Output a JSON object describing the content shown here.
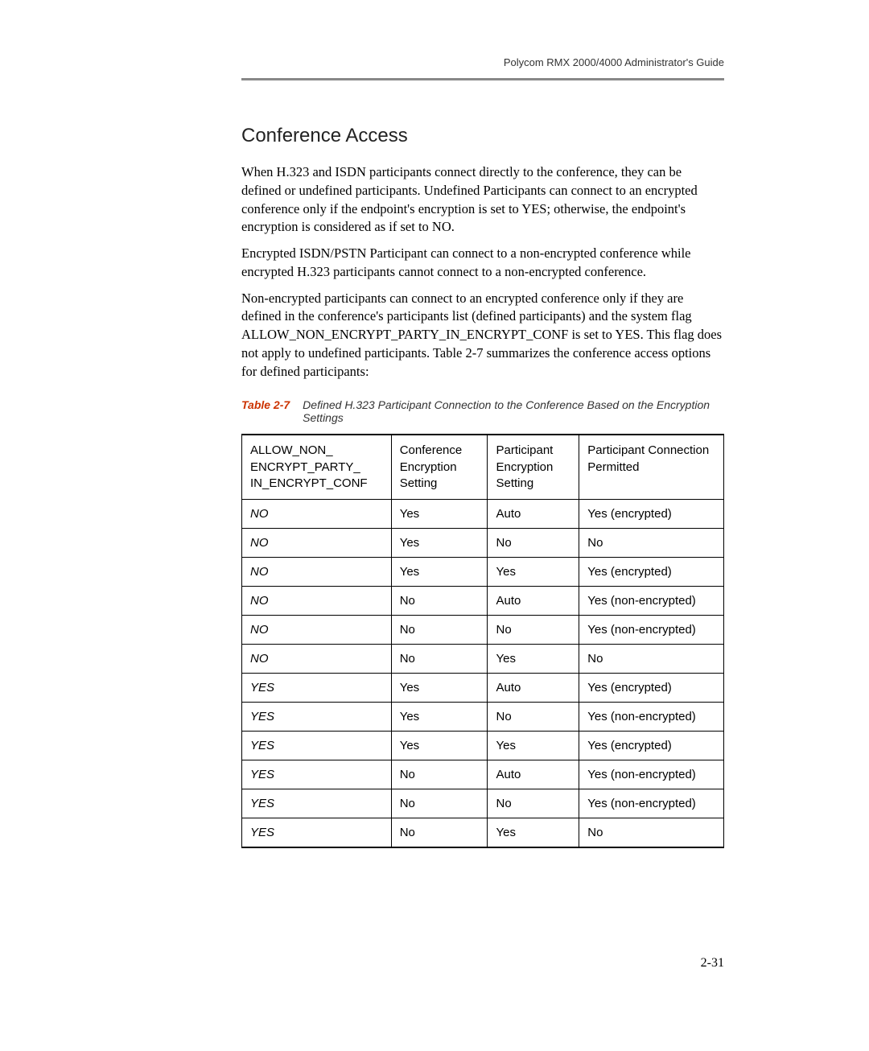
{
  "header": {
    "guide": "Polycom RMX 2000/4000 Administrator's Guide"
  },
  "section": {
    "title": "Conference Access",
    "para1": "When H.323 and ISDN participants connect directly to the conference, they can be defined or undefined participants. Undefined Participants can connect to an encrypted conference only if the endpoint's encryption is set to YES; otherwise, the endpoint's encryption is considered as if set to NO.",
    "para2": "Encrypted ISDN/PSTN Participant can connect to a non-encrypted conference while encrypted H.323 participants cannot connect to a non-encrypted conference.",
    "para3": "Non-encrypted participants can connect to an encrypted conference only if they are defined in the conference's participants list (defined participants) and the system flag ALLOW_NON_ENCRYPT_PARTY_IN_ENCRYPT_CONF is set to YES. This flag does not apply to undefined participants.  Table 2-7 summarizes the conference access options for defined participants:"
  },
  "table": {
    "caption_label": "Table 2-7",
    "caption_text": "Defined H.323 Participant Connection to the Conference Based on the Encryption Settings",
    "headers": {
      "h1": "ALLOW_NON_\nENCRYPT_PARTY_\nIN_ENCRYPT_CONF",
      "h2": "Conference Encryption Setting",
      "h3": "Participant Encryption Setting",
      "h4": "Participant Connection Permitted"
    },
    "rows": [
      {
        "c1": "NO",
        "c2": "Yes",
        "c3": "Auto",
        "c4": "Yes (encrypted)"
      },
      {
        "c1": "NO",
        "c2": "Yes",
        "c3": "No",
        "c4": "No"
      },
      {
        "c1": "NO",
        "c2": "Yes",
        "c3": "Yes",
        "c4": "Yes (encrypted)"
      },
      {
        "c1": "NO",
        "c2": "No",
        "c3": "Auto",
        "c4": "Yes (non-encrypted)"
      },
      {
        "c1": "NO",
        "c2": "No",
        "c3": "No",
        "c4": "Yes (non-encrypted)"
      },
      {
        "c1": "NO",
        "c2": "No",
        "c3": "Yes",
        "c4": "No"
      },
      {
        "c1": "YES",
        "c2": "Yes",
        "c3": "Auto",
        "c4": "Yes (encrypted)"
      },
      {
        "c1": "YES",
        "c2": "Yes",
        "c3": "No",
        "c4": "Yes (non-encrypted)"
      },
      {
        "c1": "YES",
        "c2": "Yes",
        "c3": "Yes",
        "c4": "Yes (encrypted)"
      },
      {
        "c1": "YES",
        "c2": "No",
        "c3": "Auto",
        "c4": "Yes (non-encrypted)"
      },
      {
        "c1": "YES",
        "c2": "No",
        "c3": "No",
        "c4": "Yes (non-encrypted)"
      },
      {
        "c1": "YES",
        "c2": "No",
        "c3": "Yes",
        "c4": "No"
      }
    ]
  },
  "footer": {
    "page": "2-31"
  }
}
